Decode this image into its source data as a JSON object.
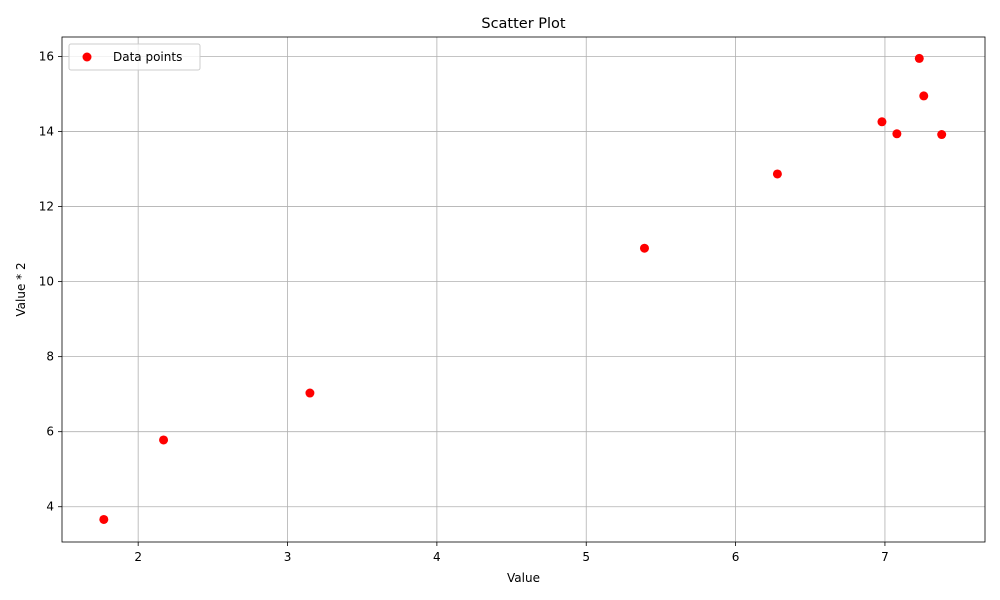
{
  "chart_data": {
    "type": "scatter",
    "title": "Scatter Plot",
    "xlabel": "Value",
    "ylabel": "Value * 2",
    "xlim": [
      1.49,
      7.67
    ],
    "ylim": [
      3.06,
      16.52
    ],
    "xticks": [
      2,
      3,
      4,
      5,
      6,
      7
    ],
    "yticks": [
      4,
      6,
      8,
      10,
      12,
      14,
      16
    ],
    "grid": true,
    "legend_position": "top-left",
    "series": [
      {
        "name": "Data points",
        "color": "#ff0000",
        "x": [
          1.77,
          2.17,
          3.15,
          5.39,
          6.28,
          6.98,
          7.08,
          7.23,
          7.26,
          7.38
        ],
        "y": [
          3.66,
          5.78,
          7.03,
          10.89,
          12.87,
          14.26,
          13.94,
          15.95,
          14.95,
          13.92
        ]
      }
    ]
  }
}
